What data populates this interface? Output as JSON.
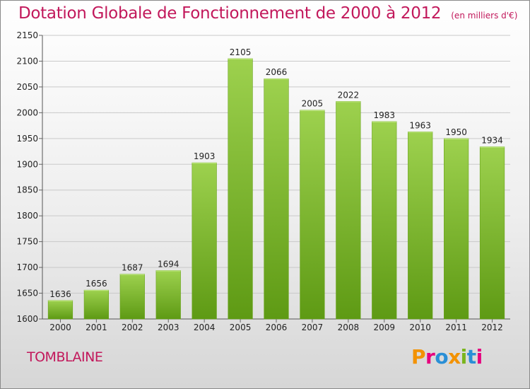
{
  "header": {
    "title": "Dotation Globale de Fonctionnement de 2000 à 2012",
    "unit": "(en milliers d'€)"
  },
  "footer": {
    "city": "TOMBLAINE",
    "brand_logo": "Proxiti"
  },
  "colors": {
    "title": "#c2185b",
    "bar_top": "#9dd14e",
    "bar_bottom": "#5e9a14",
    "grid": "#c9c9c9",
    "axis_text": "#222222"
  },
  "chart_data": {
    "type": "bar",
    "categories": [
      "2000",
      "2001",
      "2002",
      "2003",
      "2004",
      "2005",
      "2006",
      "2007",
      "2008",
      "2009",
      "2010",
      "2011",
      "2012"
    ],
    "values": [
      1636,
      1656,
      1687,
      1694,
      1903,
      2105,
      2066,
      2005,
      2022,
      1983,
      1963,
      1950,
      1934
    ],
    "title": "Dotation Globale de Fonctionnement de 2000 à 2012",
    "xlabel": "",
    "ylabel": "",
    "ylim": [
      1600,
      2150
    ],
    "yticks": [
      1600,
      1650,
      1700,
      1750,
      1800,
      1850,
      1900,
      1950,
      2000,
      2050,
      2100,
      2150
    ],
    "grid": "horizontal",
    "data_labels": true
  }
}
